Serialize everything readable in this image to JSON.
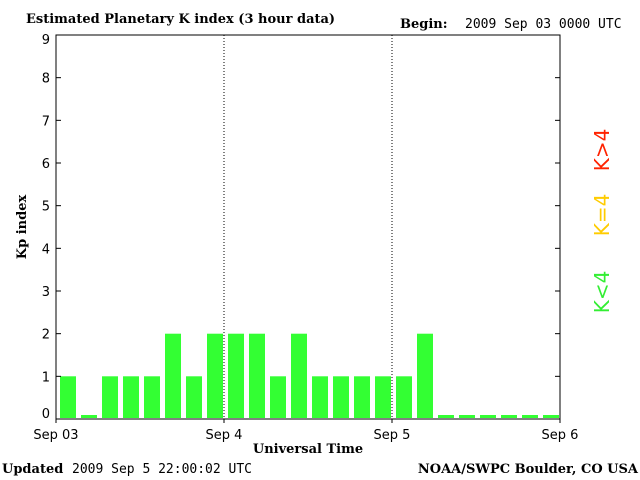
{
  "header": {
    "title": "Estimated Planetary K index (3 hour data)",
    "begin_label": "Begin:",
    "begin_value": "2009 Sep 03 0000 UTC"
  },
  "footer": {
    "updated_label": "Updated",
    "updated_value": "2009 Sep  5 22:00:02 UTC",
    "source": "NOAA/SWPC Boulder, CO USA"
  },
  "legend": {
    "above": "K>4",
    "equal": "K=4",
    "below": "K<4",
    "colors": {
      "above": "#ff2200",
      "equal": "#ffcc00",
      "below": "#33ee33"
    }
  },
  "chart_data": {
    "type": "bar",
    "title": "Estimated Planetary K index (3 hour data)",
    "xlabel": "Universal Time",
    "ylabel": "Kp index",
    "ylim": [
      0,
      9
    ],
    "yticks": [
      0,
      1,
      2,
      3,
      4,
      5,
      6,
      7,
      8,
      9
    ],
    "xtick_labels": [
      "Sep 03",
      "Sep 4",
      "Sep 5",
      "Sep 6"
    ],
    "day_separators": true,
    "bars_per_day": 8,
    "total_slots": 24,
    "bar_color": "#33ff33",
    "values": [
      1,
      0,
      1,
      1,
      1,
      2,
      1,
      2,
      2,
      2,
      1,
      2,
      1,
      1,
      1,
      1,
      1,
      2,
      0,
      0,
      0,
      0,
      0,
      0
    ]
  }
}
